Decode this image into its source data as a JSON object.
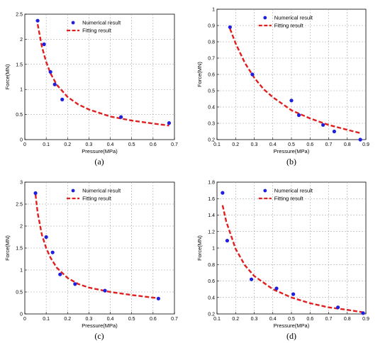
{
  "chart_data": [
    {
      "type": "scatter",
      "panel_label": "(a)",
      "xlabel": "Pressure(MPa)",
      "ylabel": "Force(MN)",
      "xlim": [
        0,
        0.7
      ],
      "ylim": [
        0,
        2.5
      ],
      "xticks": [
        0,
        0.1,
        0.2,
        0.3,
        0.4,
        0.5,
        0.6,
        0.7
      ],
      "yticks": [
        0,
        0.5,
        1,
        1.5,
        2,
        2.5
      ],
      "grid": true,
      "legend_placement": "top-right",
      "series": [
        {
          "name": "Numerical result",
          "kind": "points",
          "color": "#1f1fe0",
          "x": [
            0.06,
            0.09,
            0.12,
            0.14,
            0.175,
            0.45,
            0.675
          ],
          "y": [
            2.37,
            1.9,
            1.35,
            1.1,
            0.8,
            0.45,
            0.33
          ]
        },
        {
          "name": "Fitting result",
          "kind": "curve",
          "color": "#e01f1f",
          "x": [
            0.06,
            0.08,
            0.1,
            0.12,
            0.15,
            0.2,
            0.25,
            0.3,
            0.4,
            0.5,
            0.6,
            0.675
          ],
          "y": [
            2.3,
            1.85,
            1.55,
            1.32,
            1.09,
            0.85,
            0.7,
            0.6,
            0.46,
            0.38,
            0.32,
            0.28
          ]
        }
      ]
    },
    {
      "type": "scatter",
      "panel_label": "(b)",
      "xlabel": "Pressure(MPa)",
      "ylabel": "Force(MN)",
      "xlim": [
        0.1,
        0.9
      ],
      "ylim": [
        0.2,
        1
      ],
      "xticks": [
        0.1,
        0.2,
        0.3,
        0.4,
        0.5,
        0.6,
        0.7,
        0.8,
        0.9
      ],
      "yticks": [
        0.2,
        0.3,
        0.4,
        0.5,
        0.6,
        0.7,
        0.8,
        0.9,
        1
      ],
      "grid": true,
      "legend_placement": "top-right",
      "series": [
        {
          "name": "Numerical result",
          "kind": "points",
          "color": "#1f1fe0",
          "x": [
            0.17,
            0.29,
            0.5,
            0.54,
            0.67,
            0.73,
            0.87
          ],
          "y": [
            0.89,
            0.6,
            0.44,
            0.35,
            0.29,
            0.25,
            0.2
          ]
        },
        {
          "name": "Fitting result",
          "kind": "curve",
          "color": "#e01f1f",
          "x": [
            0.17,
            0.2,
            0.25,
            0.3,
            0.35,
            0.4,
            0.5,
            0.6,
            0.7,
            0.8,
            0.87
          ],
          "y": [
            0.88,
            0.79,
            0.67,
            0.58,
            0.51,
            0.46,
            0.38,
            0.33,
            0.29,
            0.26,
            0.24
          ]
        }
      ]
    },
    {
      "type": "scatter",
      "panel_label": "(c)",
      "xlabel": "Pressure(MPa)",
      "ylabel": "Force(MN)",
      "xlim": [
        0,
        0.7
      ],
      "ylim": [
        0,
        3
      ],
      "xticks": [
        0,
        0.1,
        0.2,
        0.3,
        0.4,
        0.5,
        0.6,
        0.7
      ],
      "yticks": [
        0,
        0.5,
        1,
        1.5,
        2,
        2.5,
        3
      ],
      "grid": true,
      "legend_placement": "top-right",
      "series": [
        {
          "name": "Numerical result",
          "kind": "points",
          "color": "#1f1fe0",
          "x": [
            0.05,
            0.1,
            0.13,
            0.165,
            0.235,
            0.375,
            0.625
          ],
          "y": [
            2.75,
            1.75,
            1.4,
            0.9,
            0.68,
            0.53,
            0.35
          ]
        },
        {
          "name": "Fitting result",
          "kind": "curve",
          "color": "#e01f1f",
          "x": [
            0.05,
            0.06,
            0.08,
            0.1,
            0.12,
            0.15,
            0.2,
            0.25,
            0.3,
            0.4,
            0.5,
            0.62
          ],
          "y": [
            2.72,
            2.3,
            1.8,
            1.5,
            1.28,
            1.05,
            0.82,
            0.68,
            0.6,
            0.5,
            0.43,
            0.36
          ]
        }
      ]
    },
    {
      "type": "scatter",
      "panel_label": "(d)",
      "xlabel": "Pressure(MPa)",
      "ylabel": "Force(MN)",
      "xlim": [
        0.1,
        0.9
      ],
      "ylim": [
        0.2,
        1.8
      ],
      "xticks": [
        0.1,
        0.2,
        0.3,
        0.4,
        0.5,
        0.6,
        0.7,
        0.8,
        0.9
      ],
      "yticks": [
        0.2,
        0.4,
        0.6,
        0.8,
        1,
        1.2,
        1.4,
        1.6,
        1.8
      ],
      "grid": true,
      "legend_placement": "top-right",
      "series": [
        {
          "name": "Numerical result",
          "kind": "points",
          "color": "#1f1fe0",
          "x": [
            0.13,
            0.155,
            0.285,
            0.42,
            0.51,
            0.75,
            0.885
          ],
          "y": [
            1.67,
            1.09,
            0.62,
            0.51,
            0.44,
            0.28,
            0.21
          ]
        },
        {
          "name": "Fitting result",
          "kind": "curve",
          "color": "#e01f1f",
          "x": [
            0.13,
            0.15,
            0.2,
            0.25,
            0.3,
            0.4,
            0.5,
            0.6,
            0.7,
            0.8,
            0.885
          ],
          "y": [
            1.52,
            1.32,
            0.99,
            0.79,
            0.66,
            0.5,
            0.4,
            0.33,
            0.28,
            0.25,
            0.22
          ]
        }
      ]
    }
  ]
}
